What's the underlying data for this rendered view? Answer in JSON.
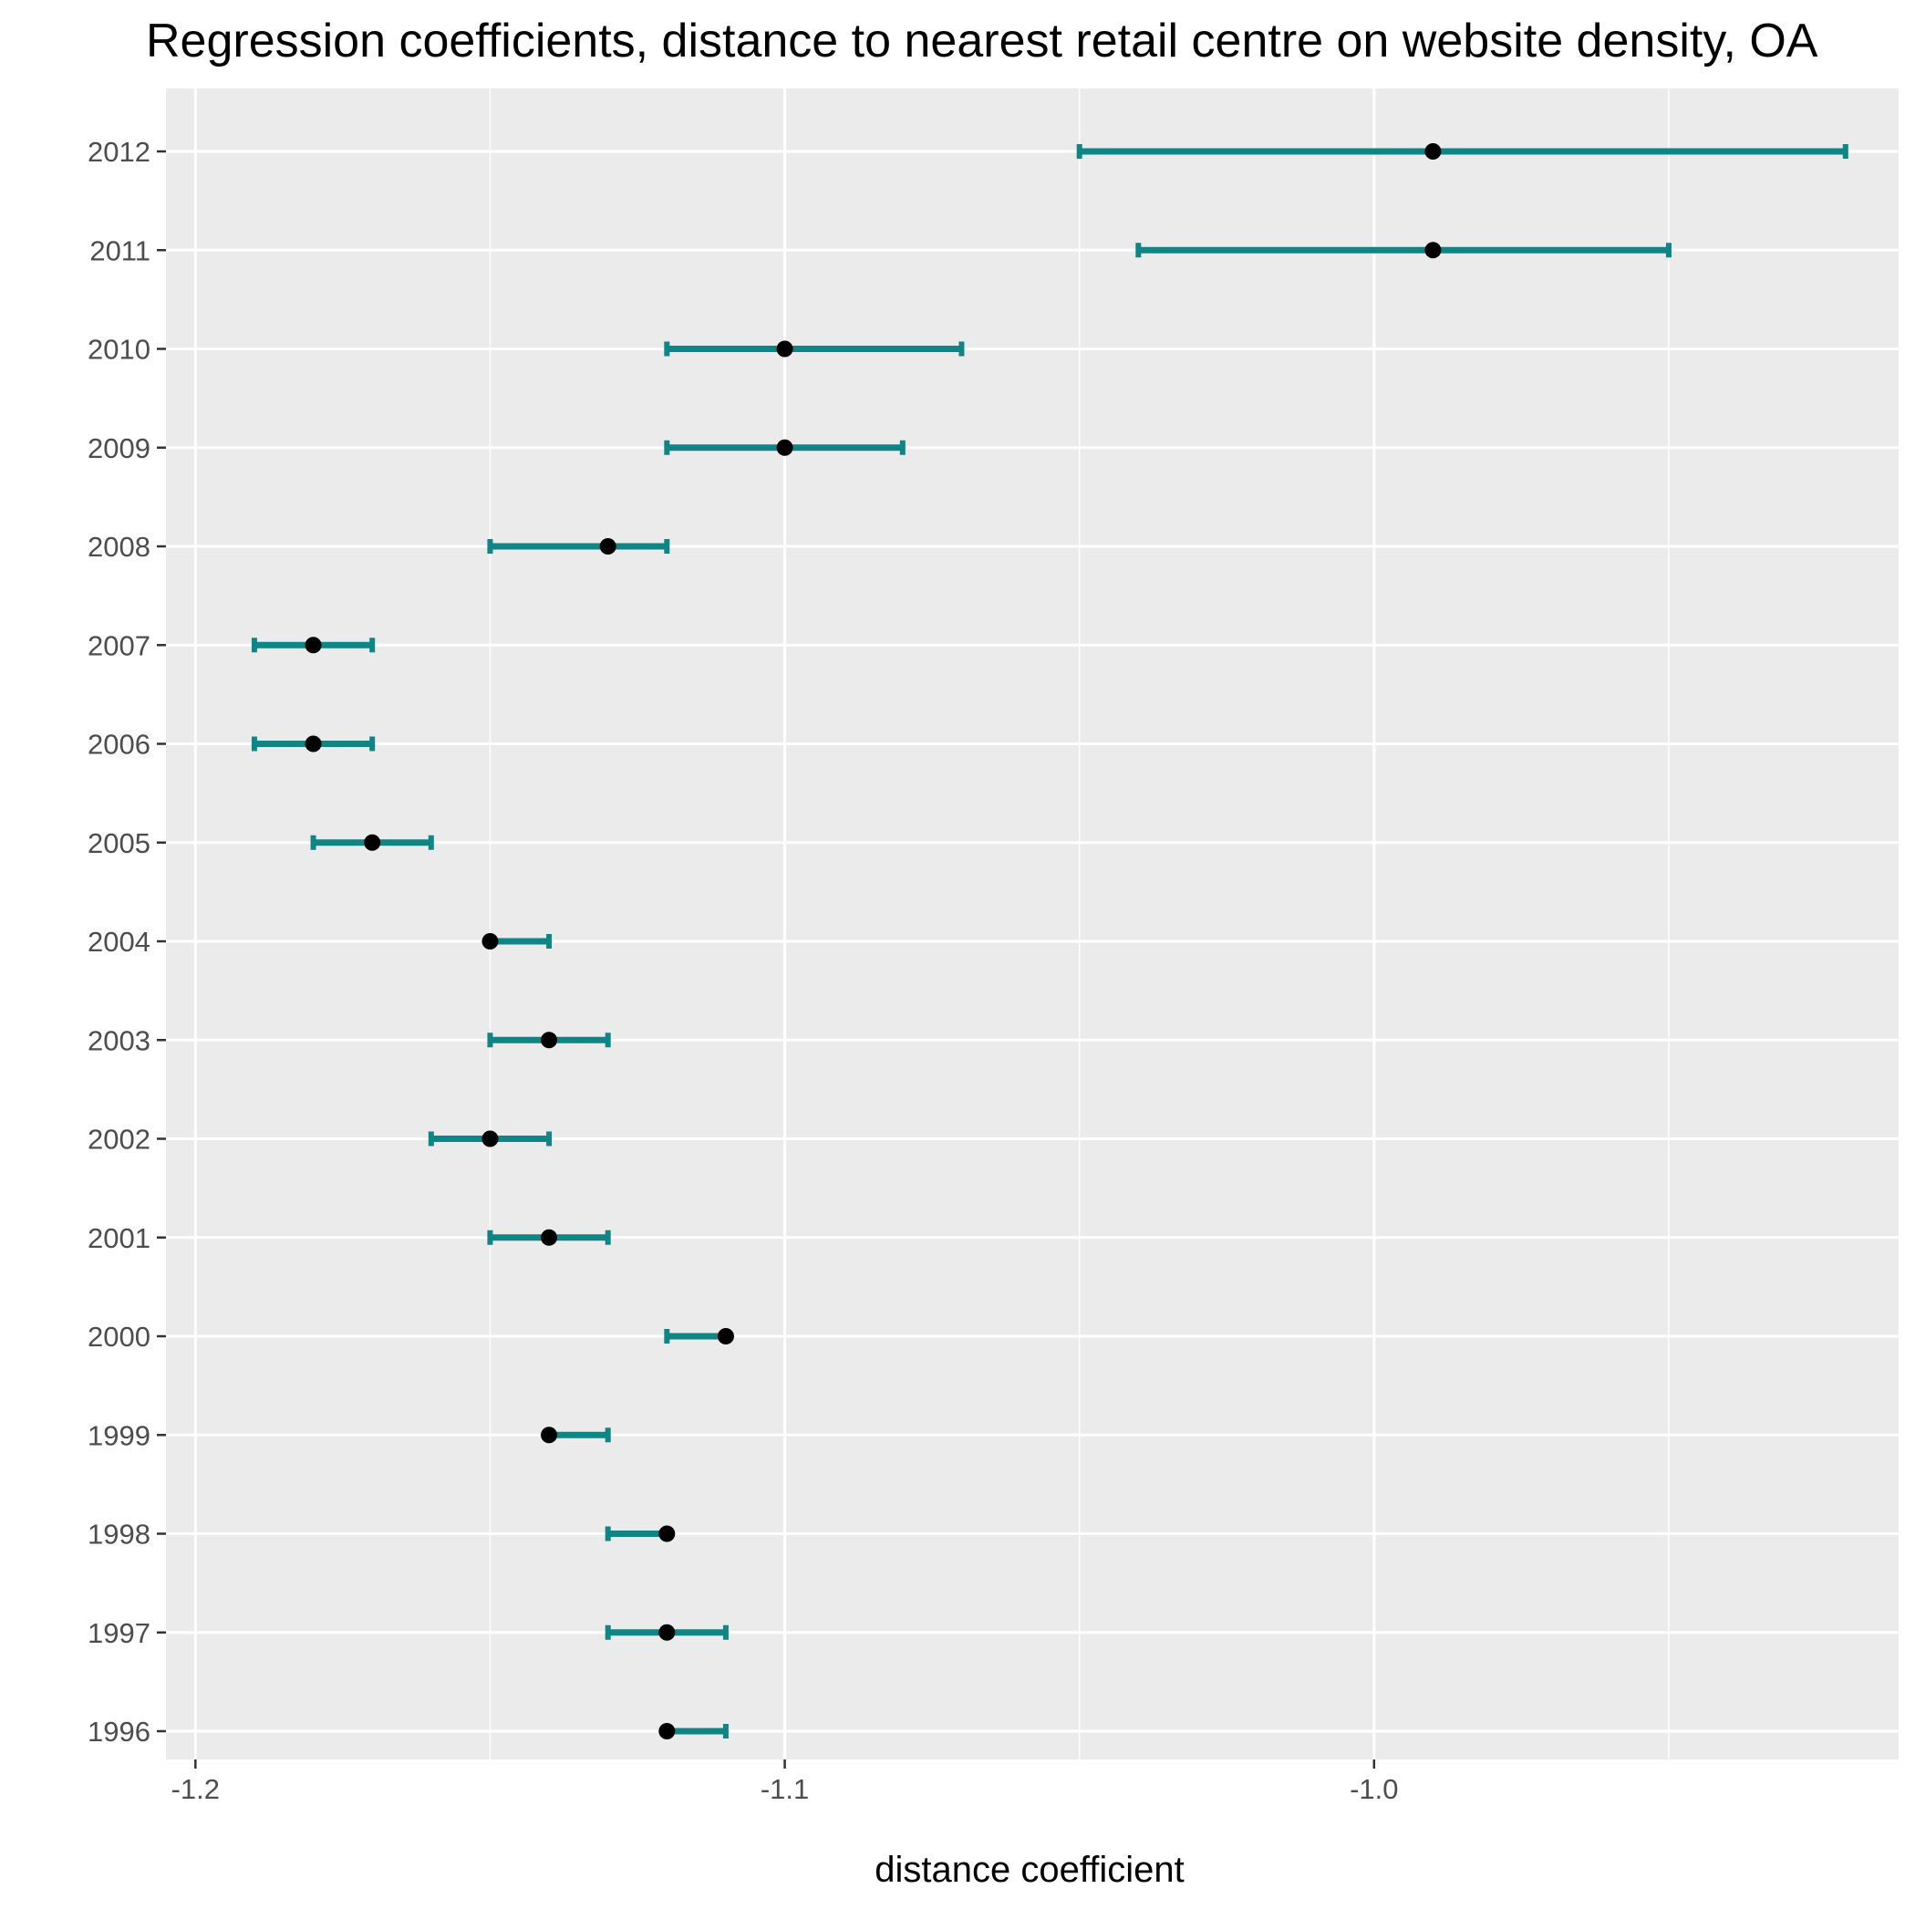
{
  "chart_data": {
    "type": "scatter",
    "title": "Regression coefficients, distance to nearest retail centre on website density, OA",
    "xlabel": "distance coefficient",
    "ylabel": "",
    "xlim": [
      -1.205,
      -0.911
    ],
    "x_ticks": [
      -1.2,
      -1.1,
      -1.0
    ],
    "x_tick_labels": [
      "-1.2",
      "-1.1",
      "-1.0"
    ],
    "minor_gridlines": [
      -1.15,
      -1.05,
      -0.95
    ],
    "categories": [
      "1996",
      "1997",
      "1998",
      "1999",
      "2000",
      "2001",
      "2002",
      "2003",
      "2004",
      "2005",
      "2006",
      "2007",
      "2008",
      "2009",
      "2010",
      "2011",
      "2012"
    ],
    "series": [
      {
        "estimate": [
          -1.12,
          -1.12,
          -1.12,
          -1.14,
          -1.11,
          -1.14,
          -1.15,
          -1.14,
          -1.15,
          -1.17,
          -1.18,
          -1.18,
          -1.13,
          -1.1,
          -1.1,
          -0.99,
          -0.99
        ],
        "lower": [
          -1.12,
          -1.13,
          -1.13,
          -1.14,
          -1.12,
          -1.15,
          -1.16,
          -1.15,
          -1.15,
          -1.18,
          -1.19,
          -1.19,
          -1.15,
          -1.12,
          -1.12,
          -1.04,
          -1.05
        ],
        "upper": [
          -1.11,
          -1.11,
          -1.12,
          -1.13,
          -1.11,
          -1.13,
          -1.14,
          -1.13,
          -1.14,
          -1.16,
          -1.17,
          -1.17,
          -1.12,
          -1.08,
          -1.07,
          -0.95,
          -0.92
        ]
      }
    ],
    "grid": true,
    "legend": "none",
    "colors": {
      "panel_background": "#ebebeb",
      "gridline": "#ffffff",
      "errorbar": "#0f8585",
      "point": "#000000",
      "tick_text": "#4d4d4d",
      "tick_mark": "#333333"
    }
  }
}
